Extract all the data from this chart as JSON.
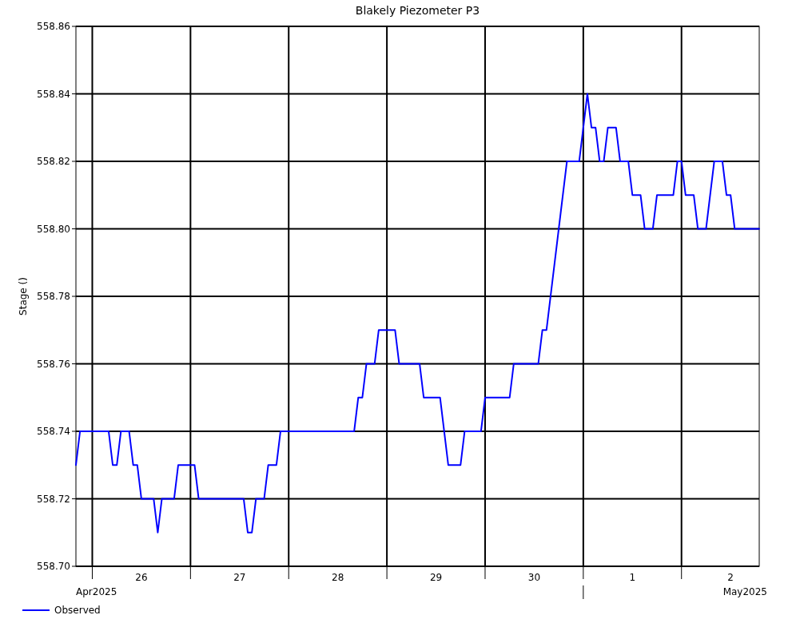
{
  "chart_data": {
    "type": "line",
    "title": "Blakely Piezometer P3",
    "ylabel": "Stage ()",
    "annotations": [
      "Apr2025",
      "May2025"
    ],
    "x": [
      "2025-04-25T20:00",
      "2025-04-25T21:00",
      "2025-04-26T04:00",
      "2025-04-26T05:00",
      "2025-04-26T06:00",
      "2025-04-26T07:00",
      "2025-04-26T09:00",
      "2025-04-26T10:00",
      "2025-04-26T11:00",
      "2025-04-26T12:00",
      "2025-04-26T15:00",
      "2025-04-26T16:00",
      "2025-04-26T17:00",
      "2025-04-26T20:00",
      "2025-04-26T21:00",
      "2025-04-27T01:00",
      "2025-04-27T02:00",
      "2025-04-27T13:00",
      "2025-04-27T14:00",
      "2025-04-27T15:00",
      "2025-04-27T16:00",
      "2025-04-27T18:00",
      "2025-04-27T19:00",
      "2025-04-27T21:00",
      "2025-04-27T22:00",
      "2025-04-28T16:00",
      "2025-04-28T17:00",
      "2025-04-28T18:00",
      "2025-04-28T19:00",
      "2025-04-28T21:00",
      "2025-04-28T22:00",
      "2025-04-29T02:00",
      "2025-04-29T03:00",
      "2025-04-29T08:00",
      "2025-04-29T09:00",
      "2025-04-29T13:00",
      "2025-04-29T14:00",
      "2025-04-29T15:00",
      "2025-04-29T18:00",
      "2025-04-29T19:00",
      "2025-04-29T23:00",
      "2025-04-30T00:00",
      "2025-04-30T06:00",
      "2025-04-30T07:00",
      "2025-04-30T13:00",
      "2025-04-30T14:00",
      "2025-04-30T15:00",
      "2025-04-30T20:00",
      "2025-04-30T23:00",
      "2025-05-01T01:00",
      "2025-05-01T02:00",
      "2025-05-01T03:00",
      "2025-05-01T04:00",
      "2025-05-01T05:00",
      "2025-05-01T06:00",
      "2025-05-01T08:00",
      "2025-05-01T09:00",
      "2025-05-01T11:00",
      "2025-05-01T12:00",
      "2025-05-01T14:00",
      "2025-05-01T15:00",
      "2025-05-01T17:00",
      "2025-05-01T18:00",
      "2025-05-01T22:00",
      "2025-05-01T23:00",
      "2025-05-02T00:00",
      "2025-05-02T01:00",
      "2025-05-02T03:00",
      "2025-05-02T04:00",
      "2025-05-02T06:00",
      "2025-05-02T08:00",
      "2025-05-02T10:00",
      "2025-05-02T11:00",
      "2025-05-02T12:00",
      "2025-05-02T13:00",
      "2025-05-02T19:00"
    ],
    "series": [
      {
        "name": "Observed",
        "color": "#0000ff",
        "values": [
          558.73,
          558.74,
          558.74,
          558.73,
          558.73,
          558.74,
          558.74,
          558.73,
          558.73,
          558.72,
          558.72,
          558.71,
          558.72,
          558.72,
          558.73,
          558.73,
          558.72,
          558.72,
          558.71,
          558.71,
          558.72,
          558.72,
          558.73,
          558.73,
          558.74,
          558.74,
          558.75,
          558.75,
          558.76,
          558.76,
          558.77,
          558.77,
          558.76,
          558.76,
          558.75,
          558.75,
          558.74,
          558.73,
          558.73,
          558.74,
          558.74,
          558.75,
          558.75,
          558.76,
          558.76,
          558.77,
          558.77,
          558.82,
          558.82,
          558.84,
          558.83,
          558.83,
          558.82,
          558.82,
          558.83,
          558.83,
          558.82,
          558.82,
          558.81,
          558.81,
          558.8,
          558.8,
          558.81,
          558.81,
          558.82,
          558.82,
          558.81,
          558.81,
          558.8,
          558.8,
          558.82,
          558.82,
          558.81,
          558.81,
          558.8,
          558.8
        ]
      }
    ],
    "xlim": [
      "2025-04-25T20:00",
      "2025-05-02T19:00"
    ],
    "xticks": [
      {
        "value": "2025-04-26T00:00",
        "label": null
      },
      {
        "value": "2025-04-26T12:00",
        "label": "26"
      },
      {
        "value": "2025-04-27T00:00",
        "label": null
      },
      {
        "value": "2025-04-27T12:00",
        "label": "27"
      },
      {
        "value": "2025-04-28T00:00",
        "label": null
      },
      {
        "value": "2025-04-28T12:00",
        "label": "28"
      },
      {
        "value": "2025-04-29T00:00",
        "label": null
      },
      {
        "value": "2025-04-29T12:00",
        "label": "29"
      },
      {
        "value": "2025-04-30T00:00",
        "label": null
      },
      {
        "value": "2025-04-30T12:00",
        "label": "30"
      },
      {
        "value": "2025-05-01T00:00",
        "label": null
      },
      {
        "value": "2025-05-01T12:00",
        "label": "1"
      },
      {
        "value": "2025-05-02T00:00",
        "label": null
      },
      {
        "value": "2025-05-02T12:00",
        "label": "2"
      }
    ],
    "ylim": [
      558.7,
      558.86
    ],
    "yticks": [
      {
        "value": 558.7,
        "label": "558.70"
      },
      {
        "value": 558.72,
        "label": "558.72"
      },
      {
        "value": 558.74,
        "label": "558.74"
      },
      {
        "value": 558.76,
        "label": "558.76"
      },
      {
        "value": 558.78,
        "label": "558.78"
      },
      {
        "value": 558.8,
        "label": "558.80"
      },
      {
        "value": 558.82,
        "label": "558.82"
      },
      {
        "value": 558.84,
        "label": "558.84"
      },
      {
        "value": 558.86,
        "label": "558.86"
      }
    ],
    "grid": true,
    "legend": "bottom left",
    "marker": "none",
    "line_style": "solid"
  }
}
